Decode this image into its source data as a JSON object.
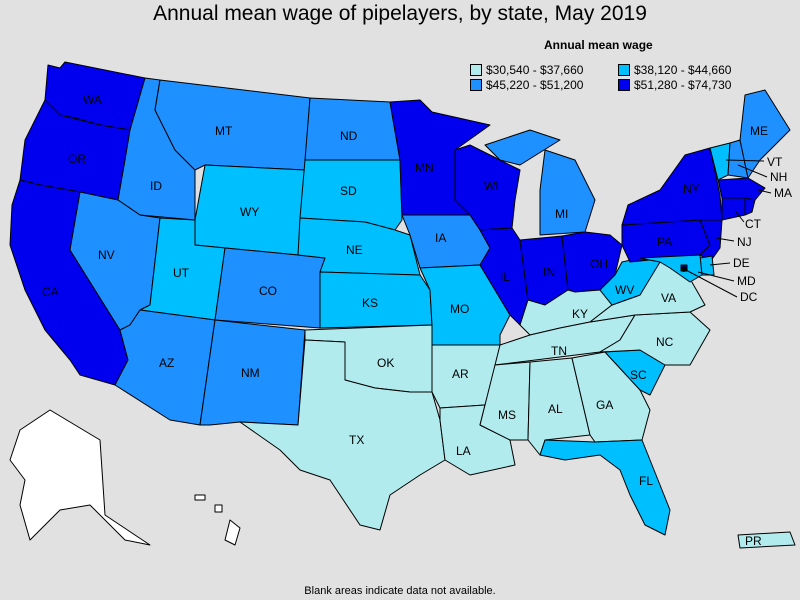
{
  "title": "Annual mean wage of pipelayers, by state, May 2019",
  "legend": {
    "title": "Annual mean wage",
    "bins": [
      {
        "label": "$30,540 - $37,660",
        "color": "#b2ebee"
      },
      {
        "label": "$38,120 - $44,660",
        "color": "#00bfff"
      },
      {
        "label": "$45,220 - $51,200",
        "color": "#1e90ff"
      },
      {
        "label": "$51,280 - $74,730",
        "color": "#0000ee"
      }
    ]
  },
  "no_data_color": "#ffffff",
  "footnote": "Blank areas indicate data not available.",
  "states": {
    "WA": 3,
    "OR": 3,
    "CA": 3,
    "ID": 2,
    "NV": 2,
    "MT": 2,
    "WY": 1,
    "UT": 1,
    "AZ": 2,
    "CO": 2,
    "NM": 2,
    "ND": 2,
    "SD": 1,
    "NE": 1,
    "KS": 1,
    "OK": 0,
    "TX": 0,
    "MN": 3,
    "IA": 2,
    "MO": 1,
    "AR": 0,
    "LA": 0,
    "WI": 3,
    "IL": 3,
    "MI": 2,
    "IN": 3,
    "OH": 3,
    "KY": 0,
    "TN": 0,
    "MS": 0,
    "AL": 0,
    "GA": 0,
    "FL": 1,
    "SC": 1,
    "NC": 0,
    "VA": 0,
    "WV": 1,
    "PA": 3,
    "NY": 3,
    "VT": 1,
    "NH": 2,
    "ME": 2,
    "MA": 3,
    "CT": 3,
    "RI": 3,
    "NJ": 3,
    "DE": 1,
    "MD": 1,
    "DC": 3,
    "PR": 0,
    "HI": -1,
    "AK": -1
  }
}
